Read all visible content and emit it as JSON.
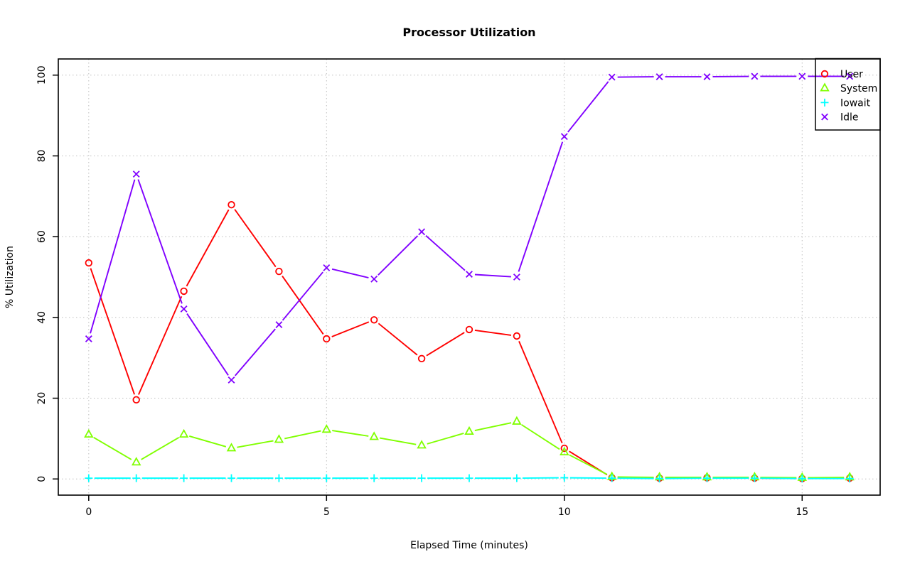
{
  "chart_data": {
    "type": "line",
    "title": "Processor Utilization",
    "xlabel": "Elapsed Time (minutes)",
    "ylabel": "% Utilization",
    "x": [
      0,
      1,
      2,
      3,
      4,
      5,
      6,
      7,
      8,
      9,
      10,
      11,
      12,
      13,
      14,
      15,
      16
    ],
    "xlim": [
      -0.64,
      16.64
    ],
    "ylim": [
      -4,
      104
    ],
    "xticks": [
      0,
      5,
      10,
      15
    ],
    "yticks": [
      0,
      20,
      40,
      60,
      80,
      100
    ],
    "grid": true,
    "grid_color": "#bebebe",
    "legend_position": "top-right",
    "series": [
      {
        "name": "User",
        "color": "#ff0000",
        "marker": "circle",
        "values": [
          53.5,
          19.6,
          46.5,
          67.9,
          51.4,
          34.7,
          39.4,
          29.8,
          37.0,
          35.4,
          7.6,
          0.3,
          0.2,
          0.3,
          0.2,
          0.1,
          0.2
        ]
      },
      {
        "name": "System",
        "color": "#80ff00",
        "marker": "triangle",
        "values": [
          11.0,
          4.1,
          11.0,
          7.6,
          9.7,
          12.2,
          10.4,
          8.3,
          11.7,
          14.2,
          6.6,
          0.5,
          0.4,
          0.4,
          0.4,
          0.3,
          0.4
        ]
      },
      {
        "name": "Iowait",
        "color": "#00ffff",
        "marker": "plus",
        "values": [
          0.2,
          0.2,
          0.2,
          0.2,
          0.2,
          0.2,
          0.2,
          0.2,
          0.2,
          0.2,
          0.3,
          0.2,
          0.1,
          0.2,
          0.2,
          0.1,
          0.1
        ]
      },
      {
        "name": "Idle",
        "color": "#8000ff",
        "marker": "x",
        "values": [
          34.7,
          75.5,
          42.1,
          24.5,
          38.2,
          52.3,
          49.5,
          61.2,
          50.7,
          50.0,
          84.8,
          99.5,
          99.6,
          99.6,
          99.7,
          99.7,
          99.7
        ]
      }
    ],
    "legend": [
      "User",
      "System",
      "Iowait",
      "Idle"
    ]
  }
}
